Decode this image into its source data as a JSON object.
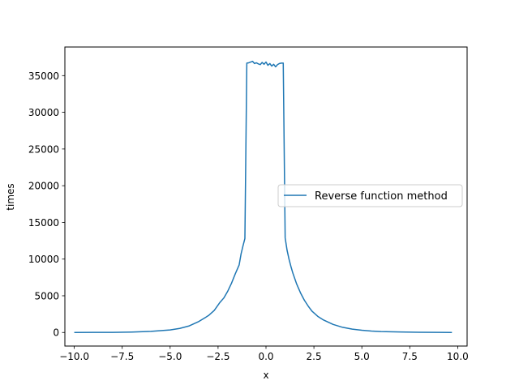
{
  "chart_data": {
    "type": "line",
    "title": "",
    "xlabel": "x",
    "ylabel": "times",
    "xlim": [
      -10.49,
      10.49
    ],
    "ylim": [
      -1850,
      38900
    ],
    "xticks": [
      -10.0,
      -7.5,
      -5.0,
      -2.5,
      0.0,
      2.5,
      5.0,
      7.5,
      10.0
    ],
    "xtick_labels": [
      "−10.0",
      "−7.5",
      "−5.0",
      "−2.5",
      "0.0",
      "2.5",
      "5.0",
      "7.5",
      "10.0"
    ],
    "yticks": [
      0,
      5000,
      10000,
      15000,
      20000,
      25000,
      30000,
      35000
    ],
    "ytick_labels": [
      "0",
      "5000",
      "10000",
      "15000",
      "20000",
      "25000",
      "30000",
      "35000"
    ],
    "grid": false,
    "legend_position": "center-right",
    "series": [
      {
        "name": "Reverse function method",
        "color": "#1f77b4",
        "x": [
          -10.0,
          -9.0,
          -8.0,
          -7.0,
          -6.0,
          -5.5,
          -5.0,
          -4.5,
          -4.0,
          -3.5,
          -3.0,
          -2.7,
          -2.4,
          -2.2,
          -2.0,
          -1.8,
          -1.6,
          -1.4,
          -1.3,
          -1.2,
          -1.1,
          -1.0,
          -0.9,
          -0.7,
          -0.6,
          -0.5,
          -0.4,
          -0.3,
          -0.2,
          -0.1,
          0.0,
          0.1,
          0.2,
          0.3,
          0.4,
          0.5,
          0.6,
          0.7,
          0.8,
          0.9,
          1.0,
          1.1,
          1.2,
          1.3,
          1.4,
          1.6,
          1.8,
          2.0,
          2.2,
          2.4,
          2.7,
          3.0,
          3.5,
          4.0,
          4.5,
          5.0,
          5.5,
          6.0,
          7.0,
          8.0,
          9.0,
          9.7
        ],
        "y": [
          0,
          10,
          20,
          60,
          150,
          250,
          350,
          550,
          900,
          1500,
          2300,
          3000,
          4100,
          4700,
          5600,
          6700,
          8000,
          9200,
          10700,
          11800,
          12800,
          36700,
          36750,
          36950,
          36650,
          36750,
          36600,
          36500,
          36800,
          36550,
          36850,
          36400,
          36650,
          36300,
          36550,
          36200,
          36500,
          36650,
          36700,
          36700,
          12900,
          11200,
          10000,
          9000,
          8100,
          6600,
          5400,
          4400,
          3600,
          2900,
          2200,
          1700,
          1100,
          700,
          450,
          300,
          200,
          130,
          70,
          30,
          10,
          0
        ]
      }
    ]
  }
}
